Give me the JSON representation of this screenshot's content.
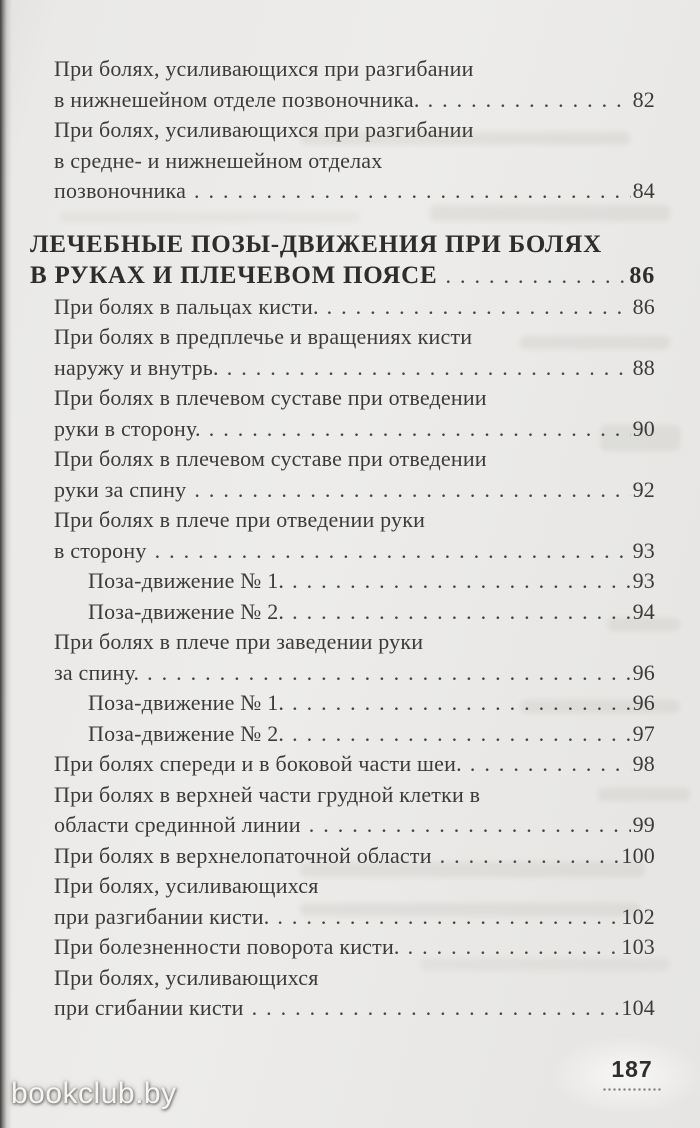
{
  "toc": {
    "entries": [
      {
        "type": "entry",
        "level": 1,
        "lines": [
          "При болях, усиливающихся при разгибании",
          "в нижнешейном отделе позвоночника."
        ],
        "page": "82"
      },
      {
        "type": "entry",
        "level": 1,
        "lines": [
          "При болях, усиливающихся при разгибании",
          "в средне- и нижнешейном отделах",
          "позвоночника"
        ],
        "page": "84"
      },
      {
        "type": "heading",
        "level": 0,
        "lines": [
          "ЛЕЧЕБНЫЕ ПОЗЫ-ДВИЖЕНИЯ ПРИ БОЛЯХ",
          "В РУКАХ И ПЛЕЧЕВОМ ПОЯСЕ"
        ],
        "page": "86"
      },
      {
        "type": "entry",
        "level": 1,
        "lines": [
          "При болях в пальцах кисти."
        ],
        "page": "86"
      },
      {
        "type": "entry",
        "level": 1,
        "lines": [
          "При болях в предплечье и вращениях кисти",
          "наружу и внутрь."
        ],
        "page": "88"
      },
      {
        "type": "entry",
        "level": 1,
        "lines": [
          "При болях в плечевом суставе при отведении",
          "руки в сторону."
        ],
        "page": "90"
      },
      {
        "type": "entry",
        "level": 1,
        "lines": [
          "При болях в плечевом суставе при отведении",
          "руки за спину"
        ],
        "page": "92"
      },
      {
        "type": "entry",
        "level": 1,
        "lines": [
          "При болях в плече при отведении руки",
          "в сторону"
        ],
        "page": "93"
      },
      {
        "type": "entry",
        "level": 2,
        "lines": [
          "Поза-движение № 1."
        ],
        "page": "93"
      },
      {
        "type": "entry",
        "level": 2,
        "lines": [
          "Поза-движение № 2."
        ],
        "page": "94"
      },
      {
        "type": "entry",
        "level": 1,
        "lines": [
          "При болях в плече при заведении руки",
          "за спину."
        ],
        "page": "96"
      },
      {
        "type": "entry",
        "level": 2,
        "lines": [
          "Поза-движение № 1."
        ],
        "page": "96"
      },
      {
        "type": "entry",
        "level": 2,
        "lines": [
          "Поза-движение № 2."
        ],
        "page": "97"
      },
      {
        "type": "entry",
        "level": 1,
        "lines": [
          "При болях спереди и в боковой части шеи."
        ],
        "page": "98"
      },
      {
        "type": "entry",
        "level": 1,
        "lines": [
          "При болях в верхней части грудной клетки в",
          "области срединной линии"
        ],
        "page": "99"
      },
      {
        "type": "entry",
        "level": 1,
        "lines": [
          "При болях в верхнелопаточной области"
        ],
        "page": "100"
      },
      {
        "type": "entry",
        "level": 1,
        "lines": [
          "При болях, усиливающихся",
          "при разгибании кисти."
        ],
        "page": "102"
      },
      {
        "type": "entry",
        "level": 1,
        "lines": [
          "При болезненности поворота кисти."
        ],
        "page": "103"
      },
      {
        "type": "entry",
        "level": 1,
        "lines": [
          "При болях, усиливающихся",
          "при сгибании кисти"
        ],
        "page": "104"
      }
    ]
  },
  "footer": {
    "page_number": "187"
  },
  "watermark": {
    "text": "bookclub.by"
  }
}
